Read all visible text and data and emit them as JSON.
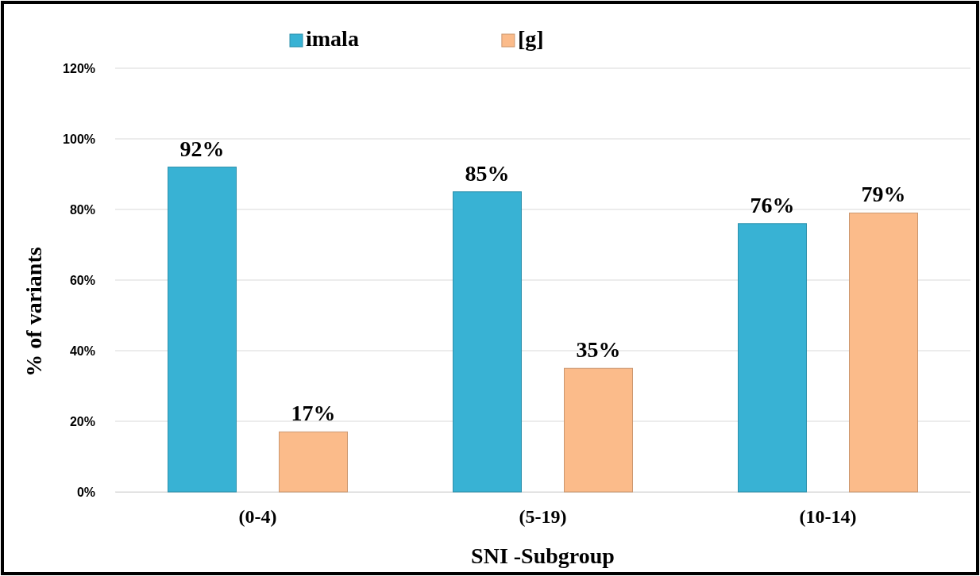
{
  "chart_data": {
    "type": "bar",
    "xlabel": "SNI -Subgroup",
    "ylabel": "% of variants",
    "categories": [
      "(0-4)",
      "(5-19)",
      "(10-14)"
    ],
    "series": [
      {
        "name": "imala",
        "color": "#38b2d4",
        "values": [
          92,
          85,
          76
        ]
      },
      {
        "name": "[g]",
        "color": "#fbbb8a",
        "values": [
          17,
          35,
          79
        ]
      }
    ],
    "ylim": [
      0,
      120
    ],
    "yticks": [
      {
        "value": 0,
        "label": "0%"
      },
      {
        "value": 20,
        "label": "20%"
      },
      {
        "value": 40,
        "label": "40%"
      },
      {
        "value": 60,
        "label": "60%"
      },
      {
        "value": 80,
        "label": "80%"
      },
      {
        "value": 100,
        "label": "100%"
      },
      {
        "value": 120,
        "label": "120%"
      }
    ],
    "value_labels": [
      [
        "92%",
        "85%",
        "76%"
      ],
      [
        "17%",
        "35%",
        "79%"
      ]
    ],
    "grid": "y",
    "legend": "top"
  }
}
